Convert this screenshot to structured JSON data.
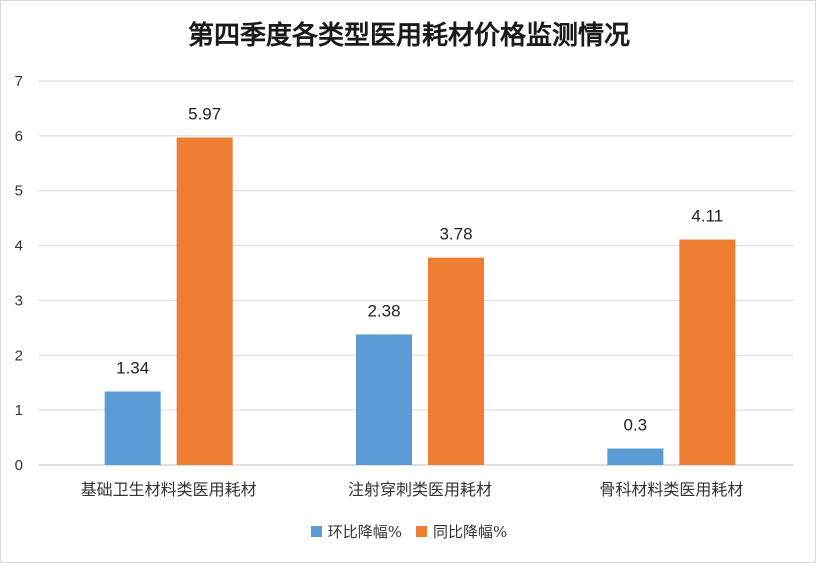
{
  "chart_data": {
    "type": "bar",
    "title": "第四季度各类型医用耗材价格监测情况",
    "categories": [
      "基础卫生材料类医用耗材",
      "注射穿刺类医用耗材",
      "骨科材料类医用耗材"
    ],
    "series": [
      {
        "name": "环比降幅%",
        "values": [
          1.34,
          2.38,
          0.3
        ],
        "color": "#5b9bd5"
      },
      {
        "name": "同比降幅%",
        "values": [
          5.97,
          3.78,
          4.11
        ],
        "color": "#ed7d31"
      }
    ],
    "ylim": [
      0,
      7
    ],
    "yticks": [
      0,
      1,
      2,
      3,
      4,
      5,
      6,
      7
    ],
    "grid": true,
    "legend_position": "bottom",
    "xlabel": "",
    "ylabel": ""
  }
}
